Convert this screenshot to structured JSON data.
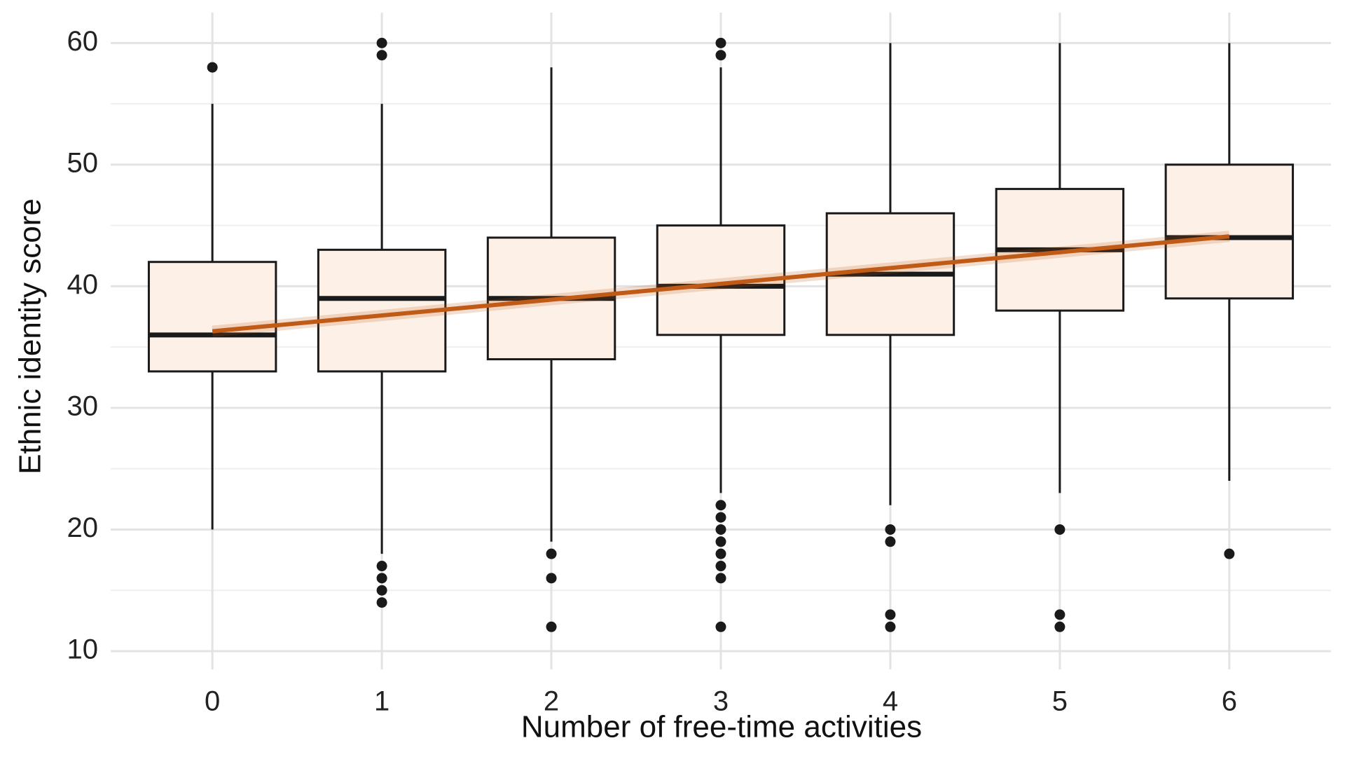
{
  "chart_data": {
    "type": "boxplot",
    "x_label": "Number of free-time activities",
    "y_label": "Ethnic identity score",
    "categories": [
      "0",
      "1",
      "2",
      "3",
      "4",
      "5",
      "6"
    ],
    "boxes": [
      {
        "low": 20,
        "q1": 33,
        "median": 36,
        "q3": 42,
        "high": 55,
        "outliers": [
          58
        ]
      },
      {
        "low": 18,
        "q1": 33,
        "median": 39,
        "q3": 43,
        "high": 55,
        "outliers": [
          60,
          59,
          17,
          16,
          15,
          14
        ]
      },
      {
        "low": 19,
        "q1": 34,
        "median": 39,
        "q3": 44,
        "high": 58,
        "outliers": [
          18,
          16,
          12
        ]
      },
      {
        "low": 23,
        "q1": 36,
        "median": 40,
        "q3": 45,
        "high": 58,
        "outliers": [
          60,
          59,
          22,
          21,
          20,
          19,
          18,
          17,
          16,
          12
        ]
      },
      {
        "low": 22,
        "q1": 36,
        "median": 41,
        "q3": 46,
        "high": 60,
        "outliers": [
          20,
          19,
          13,
          12
        ]
      },
      {
        "low": 23,
        "q1": 38,
        "median": 43,
        "q3": 48,
        "high": 60,
        "outliers": [
          20,
          13,
          12
        ]
      },
      {
        "low": 24,
        "q1": 39,
        "median": 44,
        "q3": 50,
        "high": 60,
        "outliers": [
          18
        ]
      }
    ],
    "box_color": "#fdf0e6",
    "trend": {
      "x": [
        0,
        6
      ],
      "values": [
        36.3,
        44.1
      ],
      "color": "#bf5b17"
    },
    "ylim": [
      8.5,
      62.5
    ],
    "yticks": [
      10,
      20,
      30,
      40,
      50,
      60
    ],
    "minor_yticks": [
      15,
      25,
      35,
      45,
      55
    ],
    "grid": true
  }
}
